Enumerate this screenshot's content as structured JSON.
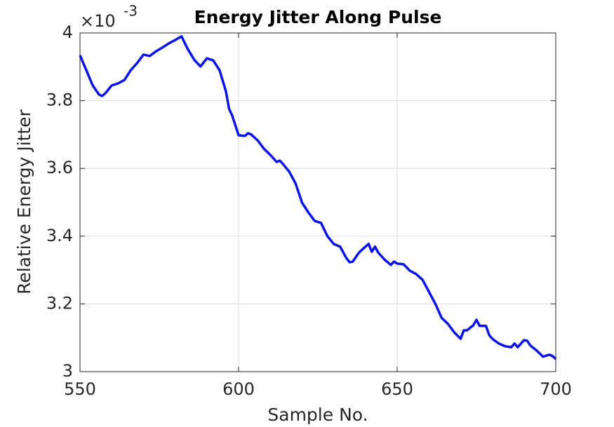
{
  "chart_data": {
    "type": "line",
    "title": "Energy Jitter Along Pulse",
    "x_label": "Sample No.",
    "y_label": "Relative Energy Jitter",
    "y_multiplier": {
      "base": "×10",
      "exponent": "-3"
    },
    "xlim": [
      550,
      700
    ],
    "ylim": [
      3,
      4
    ],
    "xticks": [
      550,
      600,
      650,
      700
    ],
    "yticks": [
      3,
      3.2,
      3.4,
      3.6,
      3.8,
      4
    ],
    "grid": true,
    "x": [
      550,
      552,
      554,
      556,
      557,
      558,
      560,
      562,
      564,
      566,
      568,
      570,
      572,
      574,
      576,
      578,
      580,
      582,
      584,
      586,
      588,
      590,
      592,
      594,
      595,
      596,
      597,
      598,
      600,
      602,
      603,
      604,
      606,
      608,
      610,
      612,
      613,
      614,
      616,
      618,
      620,
      622,
      624,
      626,
      628,
      630,
      632,
      634,
      635,
      636,
      638,
      640,
      641,
      642,
      643,
      644,
      646,
      648,
      649,
      650,
      652,
      654,
      656,
      658,
      660,
      662,
      664,
      666,
      668,
      670,
      671,
      672,
      674,
      675,
      676,
      678,
      679,
      680,
      682,
      684,
      686,
      687,
      688,
      690,
      691,
      692,
      694,
      696,
      698,
      699,
      700
    ],
    "series": [
      {
        "name": "Energy jitter",
        "color": "#0a14e6",
        "values": [
          3.934,
          3.89,
          3.845,
          3.818,
          3.814,
          3.822,
          3.845,
          3.851,
          3.861,
          3.89,
          3.911,
          3.936,
          3.932,
          3.946,
          3.957,
          3.969,
          3.979,
          3.99,
          3.952,
          3.921,
          3.901,
          3.925,
          3.919,
          3.89,
          3.859,
          3.828,
          3.776,
          3.756,
          3.698,
          3.696,
          3.704,
          3.7,
          3.683,
          3.658,
          3.64,
          3.619,
          3.623,
          3.613,
          3.59,
          3.555,
          3.499,
          3.47,
          3.445,
          3.439,
          3.4,
          3.377,
          3.369,
          3.335,
          3.323,
          3.325,
          3.352,
          3.369,
          3.377,
          3.354,
          3.369,
          3.352,
          3.331,
          3.315,
          3.325,
          3.319,
          3.317,
          3.298,
          3.288,
          3.271,
          3.236,
          3.201,
          3.159,
          3.141,
          3.116,
          3.097,
          3.122,
          3.122,
          3.137,
          3.153,
          3.135,
          3.135,
          3.108,
          3.097,
          3.083,
          3.075,
          3.072,
          3.083,
          3.072,
          3.093,
          3.091,
          3.077,
          3.062,
          3.044,
          3.05,
          3.046,
          3.037
        ]
      }
    ]
  }
}
